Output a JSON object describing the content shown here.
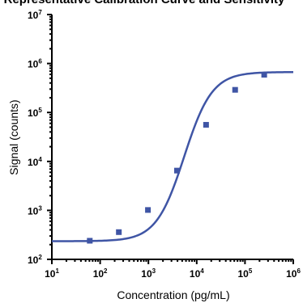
{
  "chart_data": {
    "type": "scatter",
    "title": "Representative Calibration Curve and Sensitivity",
    "xlabel": "Concentration (pg/mL)",
    "ylabel": "Signal (counts)",
    "x_scale": "log",
    "y_scale": "log",
    "xlim": [
      10,
      1000000
    ],
    "ylim": [
      100,
      10000000
    ],
    "x_ticks": [
      {
        "base": "10",
        "exp": "1"
      },
      {
        "base": "10",
        "exp": "2"
      },
      {
        "base": "10",
        "exp": "3"
      },
      {
        "base": "10",
        "exp": "4"
      },
      {
        "base": "10",
        "exp": "5"
      },
      {
        "base": "10",
        "exp": "6"
      }
    ],
    "y_ticks": [
      {
        "base": "10",
        "exp": "2"
      },
      {
        "base": "10",
        "exp": "3"
      },
      {
        "base": "10",
        "exp": "4"
      },
      {
        "base": "10",
        "exp": "5"
      },
      {
        "base": "10",
        "exp": "6"
      },
      {
        "base": "10",
        "exp": "7"
      }
    ],
    "grid": false,
    "series": [
      {
        "points": [
          {
            "x": 61,
            "y": 240
          },
          {
            "x": 244,
            "y": 360
          },
          {
            "x": 977,
            "y": 1020
          },
          {
            "x": 3906,
            "y": 6500
          },
          {
            "x": 15625,
            "y": 56000
          },
          {
            "x": 62500,
            "y": 290000
          },
          {
            "x": 250000,
            "y": 590000
          }
        ],
        "color": "#3f55a5",
        "marker": "square",
        "fit": "4PL"
      }
    ]
  }
}
